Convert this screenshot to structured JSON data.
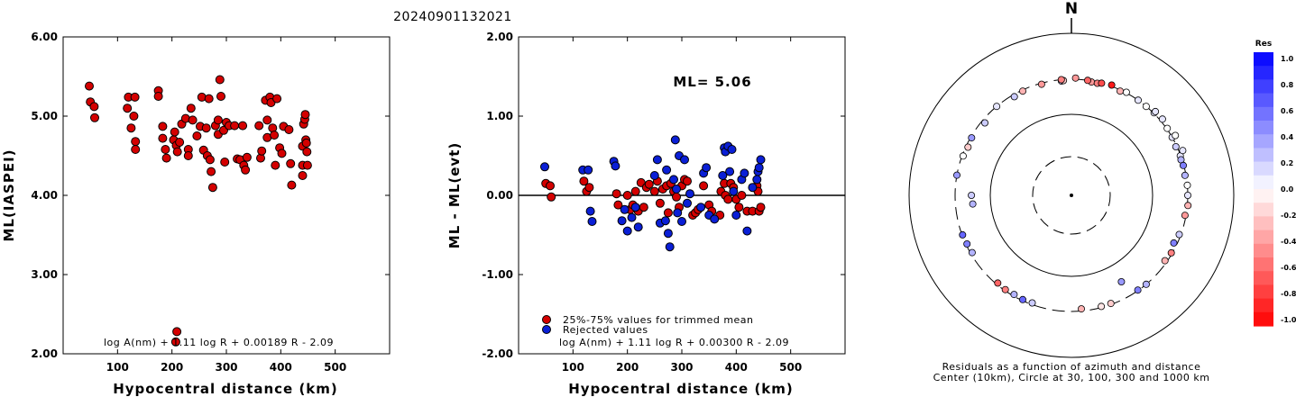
{
  "header": {
    "event_id": "20240901132021"
  },
  "colors": {
    "event": "#d40000",
    "rejected": "#0a1fd6",
    "neg_res": "#ff0000",
    "pos_res": "#0000ff"
  },
  "chart_data": [
    {
      "id": "left",
      "type": "scatter",
      "xlabel": "Hypocentral distance (km)",
      "ylabel": "ML(IASPEI)",
      "xlim": [
        0,
        600
      ],
      "ylim": [
        2.0,
        6.0
      ],
      "xticks": [
        "100",
        "200",
        "300",
        "400",
        "500"
      ],
      "yticks": [
        "2.00",
        "3.00",
        "4.00",
        "5.00",
        "6.00"
      ],
      "formula": "log A(nm) + 1.11 log R + 0.00189 R - 2.09",
      "series": [
        {
          "color": "red",
          "points": [
            [
              48,
              5.38
            ],
            [
              50,
              5.18
            ],
            [
              57,
              5.12
            ],
            [
              58,
              4.98
            ],
            [
              120,
              5.24
            ],
            [
              118,
              5.1
            ],
            [
              132,
              5.24
            ],
            [
              130,
              5.0
            ],
            [
              125,
              4.85
            ],
            [
              133,
              4.68
            ],
            [
              133,
              4.58
            ],
            [
              175,
              5.32
            ],
            [
              175,
              5.25
            ],
            [
              183,
              4.87
            ],
            [
              183,
              4.72
            ],
            [
              188,
              4.58
            ],
            [
              190,
              4.47
            ],
            [
              203,
              4.7
            ],
            [
              205,
              4.8
            ],
            [
              208,
              4.63
            ],
            [
              210,
              4.55
            ],
            [
              214,
              4.67
            ],
            [
              218,
              4.9
            ],
            [
              225,
              4.97
            ],
            [
              230,
              4.58
            ],
            [
              230,
              4.5
            ],
            [
              235,
              5.1
            ],
            [
              238,
              4.95
            ],
            [
              246,
              4.75
            ],
            [
              252,
              4.87
            ],
            [
              255,
              5.24
            ],
            [
              258,
              4.57
            ],
            [
              263,
              4.85
            ],
            [
              265,
              4.5
            ],
            [
              268,
              5.22
            ],
            [
              270,
              4.45
            ],
            [
              272,
              4.3
            ],
            [
              275,
              4.1
            ],
            [
              280,
              4.88
            ],
            [
              285,
              4.95
            ],
            [
              285,
              4.77
            ],
            [
              288,
              5.46
            ],
            [
              290,
              5.25
            ],
            [
              295,
              4.82
            ],
            [
              297,
              4.42
            ],
            [
              300,
              4.92
            ],
            [
              305,
              4.88
            ],
            [
              315,
              4.88
            ],
            [
              320,
              4.46
            ],
            [
              325,
              4.45
            ],
            [
              330,
              4.88
            ],
            [
              332,
              4.38
            ],
            [
              335,
              4.32
            ],
            [
              338,
              4.48
            ],
            [
              360,
              4.88
            ],
            [
              363,
              4.47
            ],
            [
              365,
              4.56
            ],
            [
              372,
              5.2
            ],
            [
              375,
              4.95
            ],
            [
              375,
              4.73
            ],
            [
              380,
              5.24
            ],
            [
              382,
              5.17
            ],
            [
              385,
              4.85
            ],
            [
              388,
              4.76
            ],
            [
              390,
              4.38
            ],
            [
              393,
              5.22
            ],
            [
              398,
              4.6
            ],
            [
              402,
              4.53
            ],
            [
              405,
              4.87
            ],
            [
              415,
              4.83
            ],
            [
              418,
              4.4
            ],
            [
              420,
              4.13
            ],
            [
              440,
              4.38
            ],
            [
              440,
              4.25
            ],
            [
              440,
              4.62
            ],
            [
              442,
              4.9
            ],
            [
              444,
              4.96
            ],
            [
              445,
              5.02
            ],
            [
              446,
              4.7
            ],
            [
              447,
              4.66
            ],
            [
              448,
              4.55
            ],
            [
              449,
              4.38
            ],
            [
              209,
              2.28
            ],
            [
              207,
              2.15
            ]
          ]
        }
      ]
    },
    {
      "id": "middle",
      "type": "scatter",
      "xlabel": "Hypocentral distance (km)",
      "ylabel": "ML - ML(evt)",
      "xlim": [
        0,
        600
      ],
      "ylim": [
        -2.0,
        2.0
      ],
      "xticks": [
        "100",
        "200",
        "300",
        "400",
        "500"
      ],
      "yticks": [
        "-2.00",
        "-1.00",
        "0.00",
        "1.00",
        "2.00"
      ],
      "reference_line": 0,
      "annotation": "ML= 5.06",
      "legend": {
        "items": [
          "25%-75% values for trimmed mean",
          "Rejected values"
        ],
        "position": "bottom-left"
      },
      "formula": "log A(nm) + 1.11 log R + 0.00300 R - 2.09",
      "series": [
        {
          "name": "25%-75% values for trimmed mean",
          "color": "red",
          "points": [
            [
              50,
              0.15
            ],
            [
              58,
              0.12
            ],
            [
              60,
              -0.02
            ],
            [
              120,
              0.18
            ],
            [
              125,
              0.05
            ],
            [
              130,
              0.1
            ],
            [
              180,
              0.02
            ],
            [
              183,
              -0.12
            ],
            [
              200,
              0.0
            ],
            [
              205,
              -0.18
            ],
            [
              210,
              -0.12
            ],
            [
              215,
              0.05
            ],
            [
              220,
              -0.2
            ],
            [
              225,
              0.16
            ],
            [
              230,
              -0.15
            ],
            [
              235,
              0.1
            ],
            [
              240,
              0.14
            ],
            [
              250,
              0.05
            ],
            [
              255,
              0.18
            ],
            [
              260,
              -0.1
            ],
            [
              265,
              0.08
            ],
            [
              272,
              0.12
            ],
            [
              275,
              -0.22
            ],
            [
              280,
              0.15
            ],
            [
              285,
              0.05
            ],
            [
              290,
              -0.02
            ],
            [
              295,
              -0.15
            ],
            [
              300,
              0.12
            ],
            [
              305,
              0.2
            ],
            [
              310,
              0.18
            ],
            [
              320,
              -0.25
            ],
            [
              325,
              -0.22
            ],
            [
              330,
              -0.18
            ],
            [
              340,
              0.12
            ],
            [
              350,
              -0.12
            ],
            [
              355,
              -0.2
            ],
            [
              370,
              -0.25
            ],
            [
              372,
              0.05
            ],
            [
              378,
              0.15
            ],
            [
              380,
              0.0
            ],
            [
              385,
              -0.05
            ],
            [
              390,
              0.15
            ],
            [
              395,
              0.1
            ],
            [
              400,
              -0.05
            ],
            [
              405,
              -0.15
            ],
            [
              410,
              0.0
            ],
            [
              420,
              -0.2
            ],
            [
              430,
              -0.2
            ],
            [
              438,
              0.12
            ],
            [
              440,
              0.05
            ],
            [
              442,
              -0.2
            ],
            [
              445,
              -0.15
            ]
          ]
        },
        {
          "name": "Rejected values",
          "color": "blue",
          "points": [
            [
              48,
              0.36
            ],
            [
              118,
              0.32
            ],
            [
              128,
              0.32
            ],
            [
              132,
              -0.2
            ],
            [
              135,
              -0.33
            ],
            [
              175,
              0.43
            ],
            [
              178,
              0.37
            ],
            [
              190,
              -0.32
            ],
            [
              195,
              -0.18
            ],
            [
              200,
              -0.45
            ],
            [
              208,
              -0.28
            ],
            [
              215,
              -0.15
            ],
            [
              220,
              -0.4
            ],
            [
              250,
              0.25
            ],
            [
              255,
              0.45
            ],
            [
              260,
              -0.35
            ],
            [
              270,
              -0.32
            ],
            [
              272,
              0.32
            ],
            [
              275,
              -0.48
            ],
            [
              278,
              -0.65
            ],
            [
              285,
              0.2
            ],
            [
              288,
              0.7
            ],
            [
              290,
              0.08
            ],
            [
              292,
              -0.22
            ],
            [
              295,
              0.5
            ],
            [
              300,
              -0.33
            ],
            [
              305,
              0.45
            ],
            [
              310,
              -0.1
            ],
            [
              315,
              0.02
            ],
            [
              335,
              -0.15
            ],
            [
              340,
              0.28
            ],
            [
              345,
              0.35
            ],
            [
              350,
              -0.25
            ],
            [
              360,
              -0.3
            ],
            [
              375,
              0.25
            ],
            [
              378,
              0.6
            ],
            [
              380,
              0.55
            ],
            [
              385,
              0.62
            ],
            [
              388,
              0.3
            ],
            [
              392,
              0.58
            ],
            [
              395,
              0.05
            ],
            [
              400,
              -0.25
            ],
            [
              410,
              0.2
            ],
            [
              415,
              0.28
            ],
            [
              420,
              -0.45
            ],
            [
              430,
              0.1
            ],
            [
              438,
              0.2
            ],
            [
              440,
              0.3
            ],
            [
              442,
              0.35
            ],
            [
              445,
              0.45
            ]
          ]
        }
      ]
    },
    {
      "id": "right",
      "type": "polar_scatter",
      "north_label": "N",
      "caption_line1": "Residuals as a function of azimuth and distance",
      "caption_line2": "Center (10km), Circle at 30, 100, 300 and 1000 km",
      "colorbar": {
        "title": "Res",
        "labels": [
          "1.0",
          "0.8",
          "0.6",
          "0.4",
          "0.2",
          "0.0",
          "-0.2",
          "-0.4",
          "-0.6",
          "-0.8",
          "-1.0"
        ]
      },
      "stations": [
        [
          -5,
          287,
          0.2
        ],
        [
          -4,
          290,
          -0.2
        ],
        [
          10,
          290,
          -0.4
        ],
        [
          13,
          290,
          -0.5
        ],
        [
          25,
          290,
          -0.3
        ],
        [
          35,
          300,
          0.1
        ],
        [
          40,
          300,
          0.0
        ],
        [
          45,
          305,
          0.1
        ],
        [
          55,
          305,
          0.0
        ],
        [
          60,
          300,
          0.1
        ],
        [
          65,
          290,
          0.2
        ],
        [
          70,
          295,
          0.1
        ],
        [
          72,
          290,
          0.3
        ],
        [
          75,
          295,
          0.5
        ],
        [
          80,
          290,
          0.3
        ],
        [
          85,
          300,
          0.0
        ],
        [
          90,
          300,
          0.1
        ],
        [
          95,
          305,
          -0.3
        ],
        [
          100,
          290,
          -0.4
        ],
        [
          110,
          285,
          0.2
        ],
        [
          115,
          270,
          0.5
        ],
        [
          120,
          290,
          -0.5
        ],
        [
          125,
          280,
          -0.3
        ],
        [
          150,
          180,
          0.4
        ],
        [
          145,
          295,
          0.5
        ],
        [
          140,
          300,
          0.3
        ],
        [
          160,
          290,
          -0.2
        ],
        [
          165,
          290,
          -0.1
        ],
        [
          175,
          280,
          -0.3
        ],
        [
          200,
          285,
          0.2
        ],
        [
          205,
          290,
          0.6
        ],
        [
          210,
          285,
          0.3
        ],
        [
          215,
          290,
          -0.5
        ],
        [
          220,
          285,
          -0.6
        ],
        [
          240,
          285,
          0.3
        ],
        [
          245,
          290,
          0.5
        ],
        [
          250,
          295,
          0.6
        ],
        [
          265,
          175,
          0.3
        ],
        [
          270,
          180,
          0.2
        ],
        [
          280,
          300,
          0.4
        ],
        [
          290,
          290,
          0.0
        ],
        [
          295,
          280,
          -0.2
        ],
        [
          300,
          290,
          0.4
        ],
        [
          310,
          270,
          0.2
        ],
        [
          320,
          300,
          0.1
        ],
        [
          330,
          280,
          0.2
        ],
        [
          335,
          290,
          -0.3
        ],
        [
          345,
          290,
          -0.4
        ],
        [
          355,
          300,
          -0.5
        ],
        [
          2,
          310,
          -0.4
        ],
        [
          8,
          300,
          -0.6
        ],
        [
          15,
          300,
          -0.7
        ],
        [
          20,
          310,
          -0.9
        ],
        [
          28,
          305,
          0.0
        ],
        [
          45,
          320,
          0.1
        ],
        [
          50,
          320,
          0.1
        ],
        [
          60,
          330,
          0.0
        ],
        [
          68,
          330,
          0.1
        ]
      ]
    }
  ]
}
